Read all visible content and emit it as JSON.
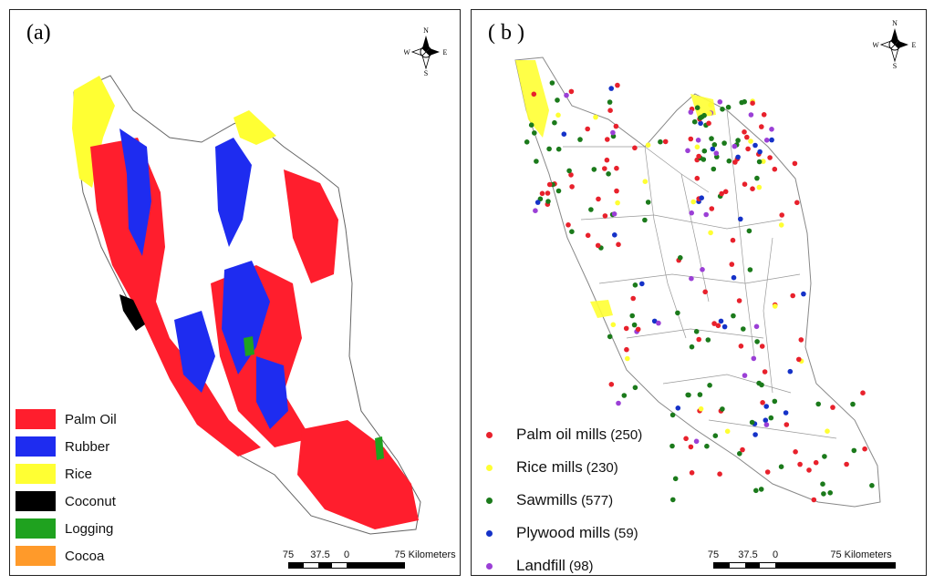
{
  "panel_a": {
    "label": "(a)",
    "compass": {
      "n": "N",
      "s": "S",
      "e": "E",
      "w": "W"
    },
    "legend": [
      {
        "label": "Palm Oil",
        "color": "#ff1e2d"
      },
      {
        "label": "Rubber",
        "color": "#1e2cf0"
      },
      {
        "label": "Rice",
        "color": "#ffff33"
      },
      {
        "label": "Coconut",
        "color": "#000000"
      },
      {
        "label": "Logging",
        "color": "#1fa21f"
      },
      {
        "label": "Cocoa",
        "color": "#ff9a2a"
      }
    ],
    "scale": {
      "ticks": [
        "75",
        "37.5",
        "0",
        "75 Kilometers"
      ]
    }
  },
  "panel_b": {
    "label": "( b )",
    "compass": {
      "n": "N",
      "s": "S",
      "e": "E",
      "w": "W"
    },
    "legend": [
      {
        "label": "Palm oil mills",
        "count": "(250)",
        "color": "#e8212c"
      },
      {
        "label": "Rice mills",
        "count": "(230)",
        "color": "#ffff33"
      },
      {
        "label": "Sawmills",
        "count": "(577)",
        "color": "#1b7a1b"
      },
      {
        "label": "Plywood mills",
        "count": "(59)",
        "color": "#1532c8"
      },
      {
        "label": "Landfill",
        "count": "(98)",
        "color": "#9b3fd6"
      }
    ],
    "scale": {
      "ticks": [
        "75",
        "37.5",
        "0",
        "75 Kilometers"
      ]
    }
  }
}
